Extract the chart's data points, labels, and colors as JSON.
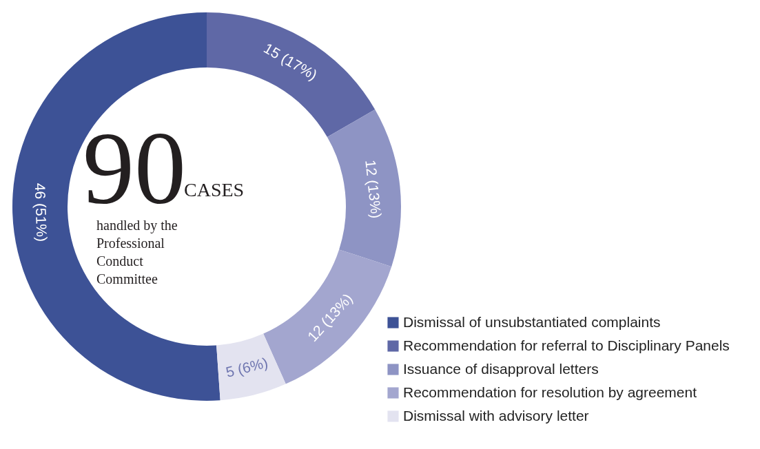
{
  "chart_data": {
    "type": "donut",
    "categories": [
      "Dismissal of unsubstantiated complaints",
      "Recommendation for referral to Disciplinary Panels",
      "Issuance of disapproval letters",
      "Recommendation for resolution by agreement",
      "Dismissal with advisory letter"
    ],
    "values": [
      46,
      15,
      12,
      12,
      5
    ],
    "colors": [
      "#3d5296",
      "#5f68a6",
      "#8e94c4",
      "#a3a6cf",
      "#e3e3f0"
    ],
    "value_labels": [
      "46 (51%)",
      "15 (17%)",
      "12 (13%)",
      "12 (13%)",
      "5 (6%)"
    ],
    "annotations": [
      "90",
      "CASES",
      "handled by the\nProfessional\nConduct\nCommittee"
    ],
    "legend": "bottom right"
  }
}
